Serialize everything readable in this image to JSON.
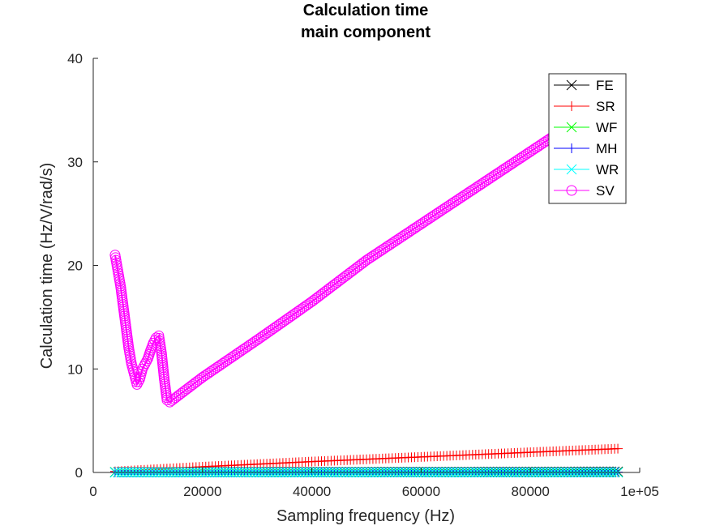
{
  "chart_data": {
    "type": "line",
    "title": [
      "Calculation time",
      "main component"
    ],
    "xlabel": "Sampling frequency (Hz)",
    "ylabel": "Calculation time (Hz/V/rad/s)",
    "xlim": [
      0,
      100000
    ],
    "ylim": [
      0,
      40
    ],
    "xticks": [
      0,
      20000,
      40000,
      60000,
      80000,
      100000
    ],
    "xtick_labels": [
      "0",
      "20000",
      "40000",
      "60000",
      "80000",
      "1e+05"
    ],
    "yticks": [
      0,
      10,
      20,
      30,
      40
    ],
    "ytick_labels": [
      "0",
      "10",
      "20",
      "30",
      "40"
    ],
    "grid": false,
    "legend_position": "top-right",
    "series": [
      {
        "name": "FE",
        "color": "#000000",
        "marker": "x",
        "x": [
          4000,
          20000,
          40000,
          60000,
          80000,
          96000
        ],
        "y": [
          0.03,
          0.04,
          0.05,
          0.06,
          0.07,
          0.08
        ]
      },
      {
        "name": "SR",
        "color": "#ff0000",
        "marker": "+",
        "x": [
          4000,
          20000,
          40000,
          60000,
          80000,
          96000
        ],
        "y": [
          0.1,
          0.55,
          1.05,
          1.5,
          1.95,
          2.3
        ]
      },
      {
        "name": "WF",
        "color": "#00ff00",
        "marker": "x",
        "x": [
          4000,
          20000,
          40000,
          60000,
          80000,
          96000
        ],
        "y": [
          0.02,
          0.02,
          0.02,
          0.02,
          0.02,
          0.02
        ]
      },
      {
        "name": "MH",
        "color": "#0000ff",
        "marker": "+",
        "x": [
          4000,
          20000,
          40000,
          60000,
          80000,
          96000
        ],
        "y": [
          0.02,
          0.02,
          0.03,
          0.03,
          0.03,
          0.03
        ]
      },
      {
        "name": "WR",
        "color": "#00ffff",
        "marker": "x",
        "x": [
          4000,
          20000,
          40000,
          60000,
          80000,
          96000
        ],
        "y": [
          0.0,
          0.0,
          0.0,
          0.0,
          0.0,
          0.0
        ]
      },
      {
        "name": "SV",
        "color": "#ff00ff",
        "marker": "o",
        "x": [
          4000,
          4500,
          5000,
          5500,
          6000,
          6500,
          7000,
          7500,
          8000,
          8500,
          9000,
          9500,
          10000,
          10500,
          11000,
          11500,
          12000,
          12500,
          13000,
          13500,
          14000,
          20000,
          30000,
          40000,
          50000,
          60000,
          70000,
          80000,
          90000
        ],
        "y": [
          21.0,
          19.5,
          18.0,
          16.0,
          14.0,
          12.0,
          10.5,
          9.5,
          8.5,
          9.0,
          10.0,
          10.5,
          11.0,
          11.8,
          12.5,
          13.0,
          13.2,
          11.5,
          9.0,
          7.0,
          6.8,
          9.2,
          12.8,
          16.5,
          20.5,
          24.0,
          27.5,
          31.0,
          34.5
        ]
      }
    ]
  }
}
